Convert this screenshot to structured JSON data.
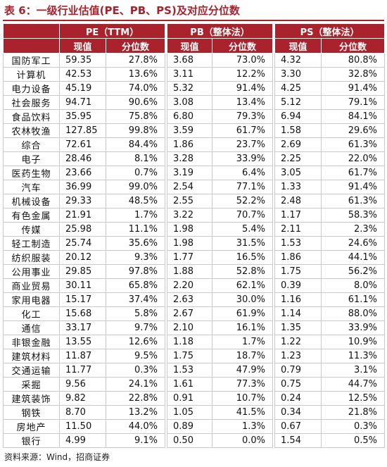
{
  "title": "表 6：一级行业估值(PE、PB、PS)及对应分位数",
  "headers": {
    "pe": "PE（TTM）",
    "pb": "PB（整体法）",
    "ps": "PS（整体法）",
    "value": "现值",
    "percentile": "分位数"
  },
  "rows": [
    [
      "国防军工",
      "59.35",
      "27.8%",
      "3.68",
      "73.0%",
      "4.32",
      "80.8%"
    ],
    [
      "计算机",
      "42.53",
      "13.6%",
      "3.11",
      "12.2%",
      "3.30",
      "32.8%"
    ],
    [
      "电力设备",
      "45.19",
      "74.0%",
      "5.32",
      "91.4%",
      "4.25",
      "91.4%"
    ],
    [
      "社会服务",
      "94.71",
      "90.6%",
      "3.08",
      "13.4%",
      "5.12",
      "79.1%"
    ],
    [
      "食品饮料",
      "35.95",
      "75.8%",
      "6.80",
      "79.3%",
      "6.94",
      "84.1%"
    ],
    [
      "农林牧渔",
      "127.85",
      "99.8%",
      "3.59",
      "61.7%",
      "1.58",
      "29.6%"
    ],
    [
      "综合",
      "72.61",
      "84.4%",
      "1.86",
      "23.7%",
      "2.69",
      "61.3%"
    ],
    [
      "电子",
      "28.46",
      "8.1%",
      "3.28",
      "33.9%",
      "2.25",
      "22.0%"
    ],
    [
      "医药生物",
      "23.66",
      "0.7%",
      "3.19",
      "6.4%",
      "3.05",
      "61.7%"
    ],
    [
      "汽车",
      "36.99",
      "99.0%",
      "2.54",
      "77.1%",
      "1.33",
      "91.4%"
    ],
    [
      "机械设备",
      "29.33",
      "48.5%",
      "2.55",
      "52.2%",
      "2.48",
      "61.3%"
    ],
    [
      "有色金属",
      "21.91",
      "1.7%",
      "3.22",
      "70.7%",
      "1.17",
      "58.3%"
    ],
    [
      "传媒",
      "25.98",
      "11.1%",
      "1.98",
      "5.4%",
      "2.11",
      "2.3%"
    ],
    [
      "轻工制造",
      "25.74",
      "35.6%",
      "1.98",
      "31.5%",
      "1.53",
      "24.6%"
    ],
    [
      "纺织服装",
      "20.12",
      "9.3%",
      "1.77",
      "16.5%",
      "1.86",
      "44.1%"
    ],
    [
      "公用事业",
      "29.85",
      "97.8%",
      "1.88",
      "52.8%",
      "1.75",
      "56.2%"
    ],
    [
      "商业贸易",
      "30.11",
      "65.8%",
      "2.20",
      "62.1%",
      "0.39",
      "8.0%"
    ],
    [
      "家用电器",
      "15.17",
      "37.4%",
      "2.63",
      "30.0%",
      "1.16",
      "61.1%"
    ],
    [
      "化工",
      "15.68",
      "5.8%",
      "2.67",
      "61.9%",
      "1.14",
      "88.0%"
    ],
    [
      "通信",
      "33.17",
      "9.7%",
      "2.10",
      "16.1%",
      "1.35",
      "33.9%"
    ],
    [
      "非银金融",
      "13.55",
      "12.6%",
      "1.18",
      "1.7%",
      "1.22",
      "10.9%"
    ],
    [
      "建筑材料",
      "11.87",
      "9.5%",
      "1.75",
      "18.7%",
      "1.23",
      "11.3%"
    ],
    [
      "交通运输",
      "11.77",
      "0.3%",
      "1.53",
      "47.9%",
      "0.79",
      "3.1%"
    ],
    [
      "采掘",
      "9.56",
      "24.1%",
      "1.61",
      "77.3%",
      "0.75",
      "44.7%"
    ],
    [
      "建筑装饰",
      "9.82",
      "22.8%",
      "0.91",
      "10.7%",
      "0.24",
      "12.5%"
    ],
    [
      "钢铁",
      "8.70",
      "13.2%",
      "1.05",
      "41.5%",
      "0.34",
      "21.8%"
    ],
    [
      "房地产",
      "11.50",
      "44.0%",
      "0.89",
      "1.3%",
      "0.67",
      "0.3%"
    ],
    [
      "银行",
      "4.99",
      "9.1%",
      "0.50",
      "0.0%",
      "1.54",
      "0.5%"
    ]
  ],
  "source": "资料来源：Wind，招商证券",
  "colors": {
    "header_bg": "#a9222c",
    "title": "#a9222c"
  }
}
